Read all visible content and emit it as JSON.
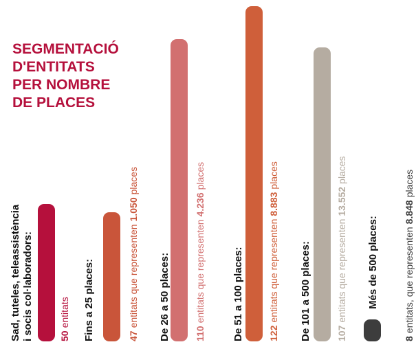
{
  "chart_data": {
    "type": "bar",
    "title": [
      "SEGMENTACIÓ",
      "D'ENTITATS",
      "PER NOMBRE",
      "DE PLACES"
    ],
    "categories": [
      [
        "Sad, tuteles, teleassistència",
        "i socis col·laboradors:"
      ],
      [
        "Fins a 25 places:"
      ],
      [
        "De 26 a 50 places:"
      ],
      [
        "De 51 a 100 places:"
      ],
      [
        "De 101 a 500 places:"
      ],
      [
        "Més de 500 places:"
      ]
    ],
    "values": [
      50,
      47,
      110,
      122,
      107,
      8
    ],
    "places": [
      null,
      1050,
      4236,
      8883,
      13552,
      8848
    ],
    "places_labels": [
      null,
      "1.050",
      "4.236",
      "8.883",
      "13.552",
      "8.848"
    ],
    "captions": [
      [
        "entitats"
      ],
      [
        "entitats que representen",
        "places"
      ],
      [
        "entitats que representen",
        "places"
      ],
      [
        "entitats que representen",
        "places"
      ],
      [
        "entitats que representen",
        "places"
      ],
      [
        "entitats, que representen",
        "places"
      ]
    ],
    "colors": [
      "#b5103c",
      "#c9553a",
      "#d27070",
      "#cf5f3a",
      "#b5aca1",
      "#3d3d3d"
    ]
  }
}
